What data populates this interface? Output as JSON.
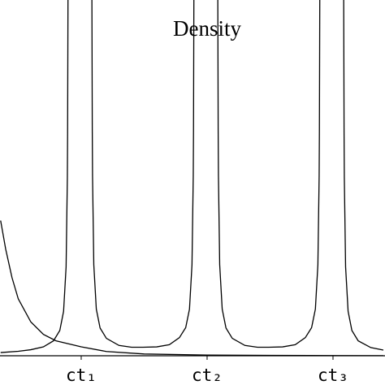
{
  "chart_data": {
    "type": "line",
    "title": "Density",
    "xlim": [
      0.355,
      3.413
    ],
    "ylim": [
      0,
      10
    ],
    "xticks": [
      {
        "value": 1,
        "label": "ct₁"
      },
      {
        "value": 2,
        "label": "ct₂"
      },
      {
        "value": 3,
        "label": "ct₃"
      }
    ],
    "series": [
      {
        "color": "#000000",
        "x": [
          0.36,
          0.4,
          0.45,
          0.5,
          0.6,
          0.7,
          0.8,
          1.0,
          1.2,
          1.5,
          2.0,
          2.5,
          3.0,
          3.4
        ],
        "values": [
          3.8,
          3.0,
          2.2,
          1.6,
          0.95,
          0.6,
          0.42,
          0.25,
          0.12,
          0.05,
          0.02,
          0.01,
          0.005,
          0.003
        ]
      },
      {
        "color": "#000000",
        "x": [
          0.36,
          0.5,
          0.6,
          0.7,
          0.78,
          0.83,
          0.86,
          0.88,
          0.89,
          0.892,
          0.895,
          0.99,
          1.085,
          1.088,
          1.09,
          1.1,
          1.12,
          1.15,
          1.2,
          1.3,
          1.4,
          1.49,
          1.6,
          1.7,
          1.78,
          1.83,
          1.86,
          1.88,
          1.89,
          1.892,
          1.895,
          1.99,
          2.085,
          2.088,
          2.09,
          2.1,
          2.12,
          2.15,
          2.2,
          2.3,
          2.4,
          2.49,
          2.6,
          2.7,
          2.78,
          2.83,
          2.86,
          2.88,
          2.89,
          2.892,
          2.895,
          2.99,
          3.085,
          3.088,
          3.09,
          3.1,
          3.12,
          3.15,
          3.2,
          3.3,
          3.4
        ],
        "values": [
          0.09,
          0.125,
          0.17,
          0.25,
          0.42,
          0.71,
          1.25,
          2.5,
          5,
          6.25,
          10,
          null,
          10.06,
          6.31,
          5.06,
          2.56,
          1.31,
          0.78,
          0.49,
          0.29,
          0.24,
          0.24,
          0.25,
          0.31,
          0.51,
          0.79,
          1.31,
          2.56,
          5.06,
          6.31,
          10.06,
          null,
          10.06,
          6.31,
          5.06,
          2.56,
          1.31,
          0.78,
          0.49,
          0.29,
          0.24,
          0.24,
          0.25,
          0.31,
          0.51,
          0.79,
          1.31,
          2.56,
          5.06,
          6.31,
          10.06,
          null,
          10,
          6.25,
          5,
          2.5,
          1.25,
          0.71,
          0.42,
          0.23,
          0.16
        ]
      }
    ]
  }
}
